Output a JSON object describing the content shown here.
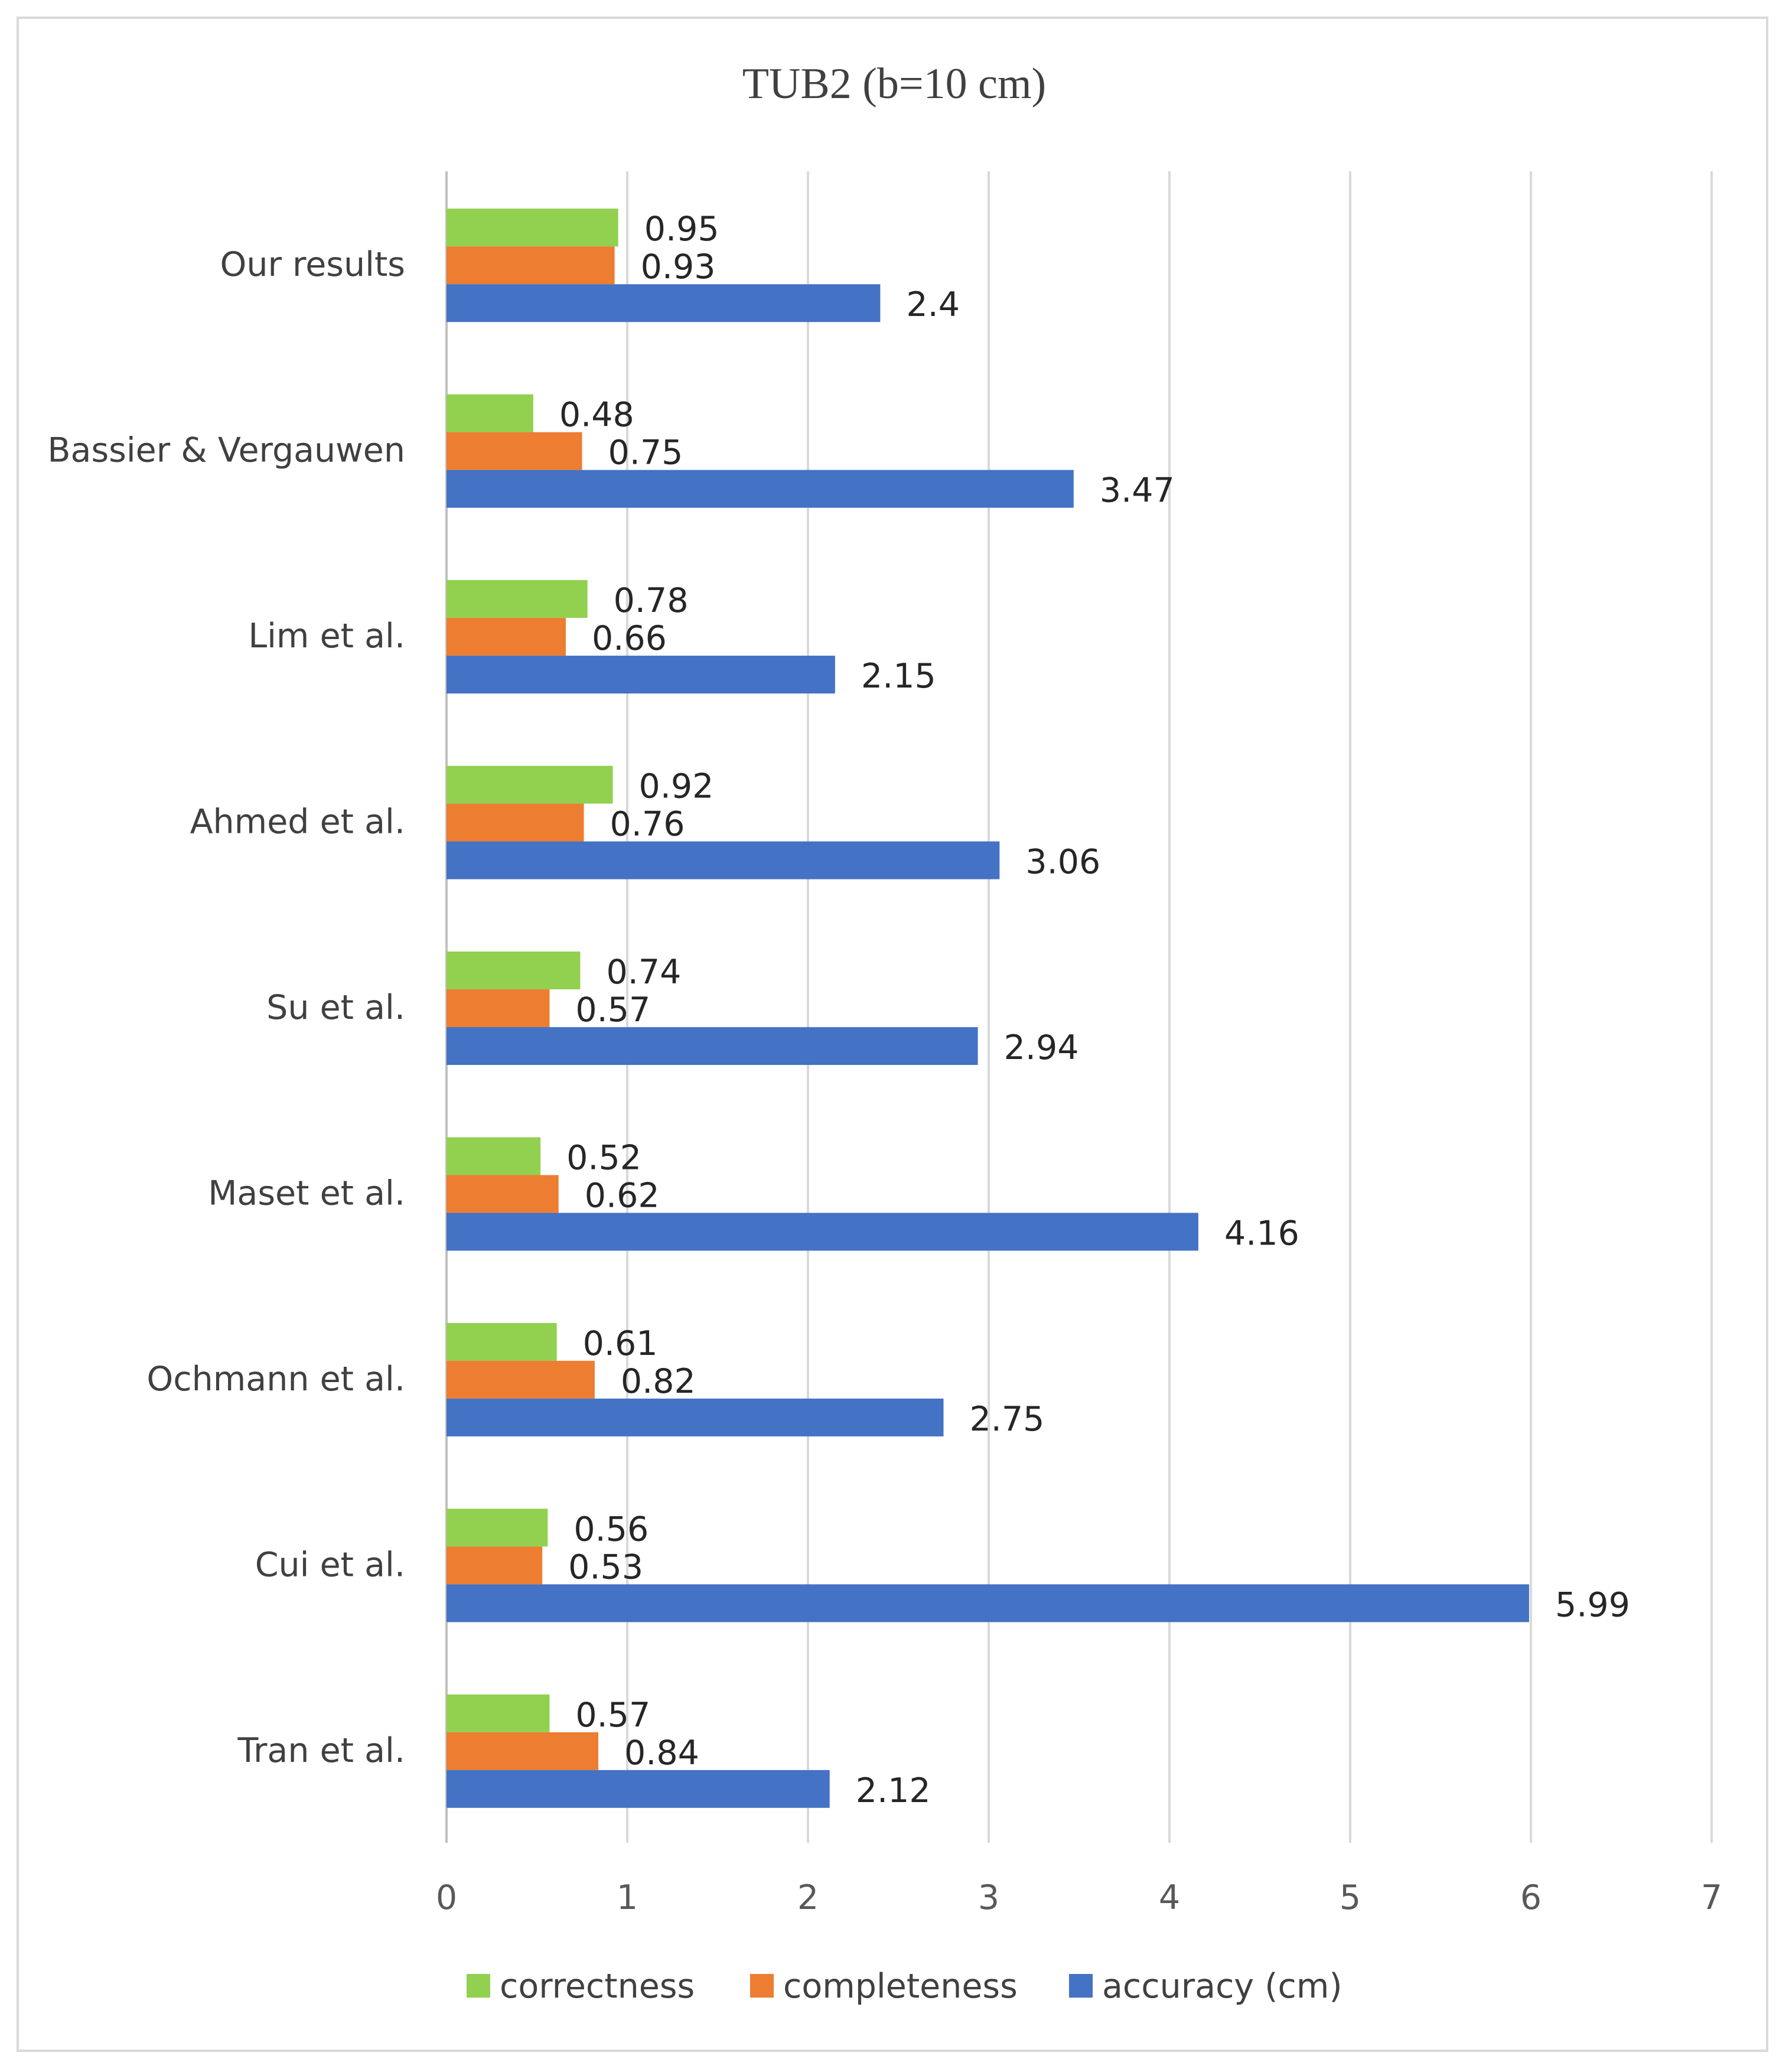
{
  "chart_data": {
    "type": "bar",
    "orientation": "horizontal",
    "title": "TUB2 (b=10 cm)",
    "xlabel": "",
    "ylabel": "",
    "xlim": [
      0,
      7
    ],
    "x_ticks": [
      "0",
      "1",
      "2",
      "3",
      "4",
      "5",
      "6",
      "7"
    ],
    "grid": true,
    "legend_position": "bottom",
    "categories": [
      "Our results",
      "Bassier & Vergauwen",
      "Lim et al.",
      "Ahmed et al.",
      "Su et al.",
      "Maset et al.",
      "Ochmann et al.",
      "Cui et al.",
      "Tran et al."
    ],
    "series": [
      {
        "name": "correctness",
        "color": "#92d050",
        "values": [
          0.95,
          0.48,
          0.78,
          0.92,
          0.74,
          0.52,
          0.61,
          0.56,
          0.57
        ],
        "labels": [
          "0.95",
          "0.48",
          "0.78",
          "0.92",
          "0.74",
          "0.52",
          "0.61",
          "0.56",
          "0.57"
        ]
      },
      {
        "name": "completeness",
        "color": "#ed7d31",
        "values": [
          0.93,
          0.75,
          0.66,
          0.76,
          0.57,
          0.62,
          0.82,
          0.53,
          0.84
        ],
        "labels": [
          "0.93",
          "0.75",
          "0.66",
          "0.76",
          "0.57",
          "0.62",
          "0.82",
          "0.53",
          "0.84"
        ]
      },
      {
        "name": "accuracy (cm)",
        "color": "#4472c4",
        "values": [
          2.4,
          3.47,
          2.15,
          3.06,
          2.94,
          4.16,
          2.75,
          5.99,
          2.12
        ],
        "labels": [
          "2.4",
          "3.47",
          "2.15",
          "3.06",
          "2.94",
          "4.16",
          "2.75",
          "5.99",
          "2.12"
        ]
      }
    ]
  }
}
